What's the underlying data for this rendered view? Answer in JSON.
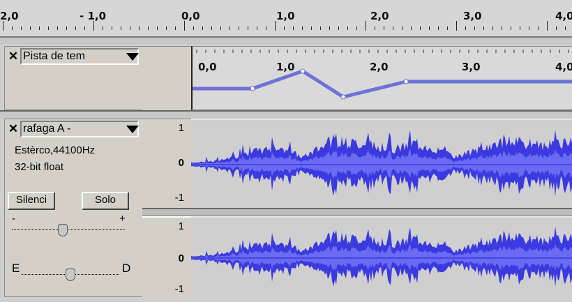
{
  "ruler": {
    "labels": [
      "2,0",
      "- 1,0",
      "0,0",
      "1,0",
      "2,0",
      "3,0",
      "4,0"
    ]
  },
  "time_track": {
    "name": "Pista de tem",
    "ruler_labels": [
      "0,0",
      "1,0",
      "2,0",
      "3,0",
      "4,0"
    ],
    "line_color": "#6b73d6"
  },
  "audio_track": {
    "name": "rafaga A -",
    "info_format": "Estèrco,44100Hz",
    "info_bitdepth": "32-bit float",
    "mute_label": "Silenci",
    "solo_label": "Solo",
    "gain_minus": "-",
    "gain_plus": "+",
    "pan_left": "E",
    "pan_right": "D",
    "gain_level": 0.45,
    "pan_level": 0.5,
    "channel1_scale": [
      "1",
      "0",
      "-1"
    ],
    "channel2_scale": [
      "1",
      "0",
      "-1"
    ],
    "wave_color": "#3a3ae0",
    "wave_color_rms": "#6a6af2"
  },
  "icons": {
    "close": "close-icon",
    "menu": "triangle-down-icon"
  }
}
